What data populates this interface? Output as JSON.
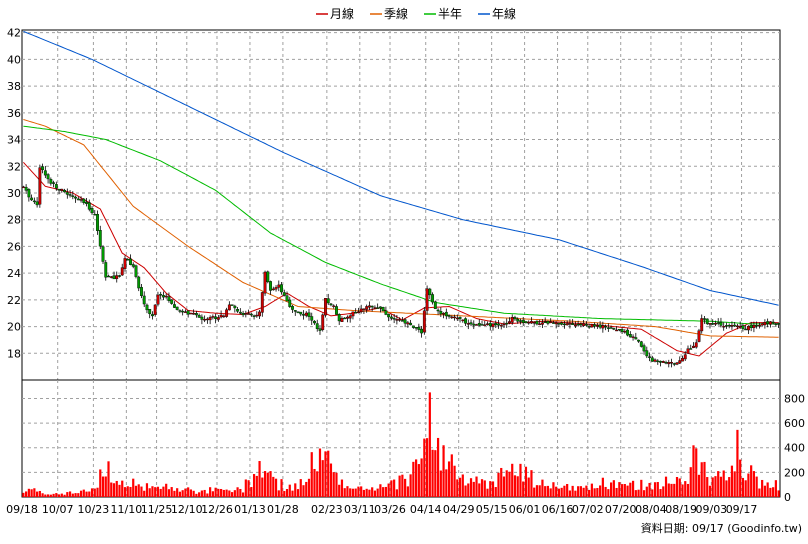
{
  "chart_data": [
    {
      "type": "candlestick-line",
      "legend": [
        {
          "name": "月線",
          "color": "#cc0000"
        },
        {
          "name": "季線",
          "color": "#e06000"
        },
        {
          "name": "半年",
          "color": "#00bb00"
        },
        {
          "name": "年線",
          "color": "#0055cc"
        }
      ],
      "ylim": [
        16,
        42.2
      ],
      "yticks": [
        18,
        20,
        22,
        24,
        26,
        28,
        30,
        32,
        34,
        36,
        38,
        40,
        42
      ],
      "grid": true,
      "colors": {
        "up": "#cc0000",
        "down": "#009900",
        "border": "#000000"
      },
      "ma_knots": {
        "年線": [
          [
            0,
            42.1
          ],
          [
            25,
            40
          ],
          [
            60,
            36.5
          ],
          [
            95,
            33
          ],
          [
            130,
            29.8
          ],
          [
            160,
            28
          ],
          [
            195,
            26.5
          ],
          [
            225,
            24.5
          ],
          [
            250,
            22.7
          ],
          [
            275,
            21.6
          ]
        ],
        "半年": [
          [
            0,
            35
          ],
          [
            15,
            34.6
          ],
          [
            30,
            34
          ],
          [
            50,
            32.4
          ],
          [
            70,
            30.2
          ],
          [
            90,
            27
          ],
          [
            110,
            24.8
          ],
          [
            130,
            23.2
          ],
          [
            150,
            21.8
          ],
          [
            175,
            21
          ],
          [
            210,
            20.6
          ],
          [
            250,
            20.4
          ],
          [
            265,
            20.2
          ],
          [
            275,
            20.2
          ]
        ],
        "季線": [
          [
            0,
            35.5
          ],
          [
            8,
            35
          ],
          [
            22,
            33.6
          ],
          [
            40,
            29
          ],
          [
            60,
            26
          ],
          [
            80,
            23.3
          ],
          [
            100,
            21.5
          ],
          [
            120,
            21.2
          ],
          [
            160,
            20.8
          ],
          [
            200,
            20.4
          ],
          [
            230,
            20
          ],
          [
            250,
            19.3
          ],
          [
            275,
            19.2
          ]
        ],
        "月線": [
          [
            0,
            32.3
          ],
          [
            8,
            30.5
          ],
          [
            18,
            30
          ],
          [
            28,
            28.8
          ],
          [
            36,
            25.5
          ],
          [
            44,
            24.4
          ],
          [
            52,
            22.5
          ],
          [
            60,
            21.2
          ],
          [
            70,
            21
          ],
          [
            80,
            20.9
          ],
          [
            88,
            21.5
          ],
          [
            96,
            22.5
          ],
          [
            104,
            21.5
          ],
          [
            112,
            20.8
          ],
          [
            120,
            21
          ],
          [
            130,
            21.4
          ],
          [
            138,
            20.5
          ],
          [
            146,
            21.4
          ],
          [
            155,
            21.5
          ],
          [
            165,
            20.6
          ],
          [
            175,
            20.2
          ],
          [
            190,
            20.4
          ],
          [
            205,
            20.2
          ],
          [
            215,
            20
          ],
          [
            225,
            19.8
          ],
          [
            238,
            18.2
          ],
          [
            246,
            17.8
          ],
          [
            256,
            19.5
          ],
          [
            265,
            20.3
          ],
          [
            275,
            20.3
          ]
        ]
      },
      "price_knots": [
        [
          0,
          30.4
        ],
        [
          3,
          29.5
        ],
        [
          5,
          29.2
        ],
        [
          6,
          32
        ],
        [
          9,
          31
        ],
        [
          13,
          30.3
        ],
        [
          18,
          29.7
        ],
        [
          22,
          29.3
        ],
        [
          26,
          28.4
        ],
        [
          28,
          26
        ],
        [
          30,
          23.8
        ],
        [
          33,
          23.6
        ],
        [
          35,
          23.8
        ],
        [
          37,
          25.2
        ],
        [
          40,
          24.5
        ],
        [
          42,
          22.8
        ],
        [
          45,
          21.2
        ],
        [
          47,
          20.8
        ],
        [
          49,
          22.3
        ],
        [
          52,
          22.3
        ],
        [
          55,
          21.3
        ],
        [
          58,
          21.1
        ],
        [
          62,
          20.9
        ],
        [
          65,
          20.6
        ],
        [
          70,
          20.7
        ],
        [
          73,
          20.9
        ],
        [
          75,
          21.7
        ],
        [
          78,
          21.1
        ],
        [
          81,
          20.9
        ],
        [
          84,
          20.8
        ],
        [
          86,
          21
        ],
        [
          88,
          24
        ],
        [
          90,
          22.6
        ],
        [
          93,
          23
        ],
        [
          95,
          22.2
        ],
        [
          97,
          21.5
        ],
        [
          100,
          21
        ],
        [
          103,
          20.9
        ],
        [
          106,
          20.3
        ],
        [
          108,
          19.6
        ],
        [
          110,
          22
        ],
        [
          113,
          21.5
        ],
        [
          115,
          20.5
        ],
        [
          118,
          20.8
        ],
        [
          121,
          21.1
        ],
        [
          124,
          21.3
        ],
        [
          127,
          21.6
        ],
        [
          130,
          21.4
        ],
        [
          133,
          20.7
        ],
        [
          136,
          20.5
        ],
        [
          139,
          20.3
        ],
        [
          142,
          20
        ],
        [
          145,
          19.6
        ],
        [
          147,
          22.8
        ],
        [
          150,
          21.3
        ],
        [
          153,
          20.9
        ],
        [
          156,
          20.8
        ],
        [
          160,
          20.4
        ],
        [
          165,
          20.1
        ],
        [
          170,
          20.1
        ],
        [
          175,
          20.1
        ],
        [
          178,
          20.7
        ],
        [
          181,
          20.4
        ],
        [
          185,
          20.3
        ],
        [
          190,
          20.3
        ],
        [
          195,
          20.3
        ],
        [
          200,
          20.2
        ],
        [
          205,
          20.1
        ],
        [
          210,
          20
        ],
        [
          215,
          19.8
        ],
        [
          219,
          19.6
        ],
        [
          222,
          19.2
        ],
        [
          225,
          18.6
        ],
        [
          227,
          17.8
        ],
        [
          229,
          17.5
        ],
        [
          232,
          17.4
        ],
        [
          235,
          17.2
        ],
        [
          238,
          17.4
        ],
        [
          240,
          17.6
        ],
        [
          242,
          18.3
        ],
        [
          245,
          18.7
        ],
        [
          247,
          20.6
        ],
        [
          250,
          20.2
        ],
        [
          253,
          20.2
        ],
        [
          256,
          20
        ],
        [
          260,
          20
        ],
        [
          263,
          19.9
        ],
        [
          266,
          20
        ],
        [
          269,
          20.2
        ],
        [
          272,
          20.3
        ],
        [
          274,
          20.3
        ],
        [
          275,
          20.3
        ]
      ],
      "volume_ylim": [
        0,
        950
      ],
      "volume_yticks": [
        0,
        200,
        400,
        600,
        800
      ],
      "volume_knots": [
        [
          0,
          70
        ],
        [
          8,
          40
        ],
        [
          15,
          30
        ],
        [
          25,
          60
        ],
        [
          30,
          250
        ],
        [
          33,
          150
        ],
        [
          40,
          130
        ],
        [
          48,
          70
        ],
        [
          55,
          110
        ],
        [
          62,
          40
        ],
        [
          68,
          60
        ],
        [
          75,
          50
        ],
        [
          80,
          80
        ],
        [
          87,
          280
        ],
        [
          92,
          120
        ],
        [
          100,
          80
        ],
        [
          108,
          420
        ],
        [
          112,
          250
        ],
        [
          118,
          80
        ],
        [
          125,
          60
        ],
        [
          133,
          90
        ],
        [
          140,
          180
        ],
        [
          145,
          300
        ],
        [
          147,
          930
        ],
        [
          149,
          650
        ],
        [
          151,
          420
        ],
        [
          155,
          300
        ],
        [
          160,
          140
        ],
        [
          170,
          110
        ],
        [
          178,
          280
        ],
        [
          182,
          200
        ],
        [
          190,
          100
        ],
        [
          200,
          80
        ],
        [
          210,
          120
        ],
        [
          218,
          90
        ],
        [
          225,
          110
        ],
        [
          233,
          130
        ],
        [
          240,
          120
        ],
        [
          245,
          390
        ],
        [
          250,
          120
        ],
        [
          256,
          270
        ],
        [
          258,
          420
        ],
        [
          260,
          500
        ],
        [
          262,
          300
        ],
        [
          268,
          120
        ],
        [
          275,
          100
        ]
      ],
      "volume_seed": 17,
      "n_days": 276,
      "x_tick_labels": [
        "09/18",
        "10/07",
        "10/23",
        "11/10",
        "11/25",
        "12/10",
        "12/26",
        "01/13",
        "01/28",
        "02/23",
        "03/11",
        "03/26",
        "04/14",
        "04/29",
        "05/15",
        "06/01",
        "06/16",
        "07/02",
        "07/20",
        "08/04",
        "08/19",
        "09/03",
        "09/17"
      ],
      "x_tick_days": [
        0,
        13,
        26,
        38,
        49,
        60,
        71,
        83,
        95,
        111,
        123,
        134,
        147,
        159,
        171,
        183,
        195,
        206,
        218,
        229,
        240,
        251,
        262
      ],
      "footnote": "資料日期: 09/17  (Goodinfo.tw)"
    }
  ]
}
